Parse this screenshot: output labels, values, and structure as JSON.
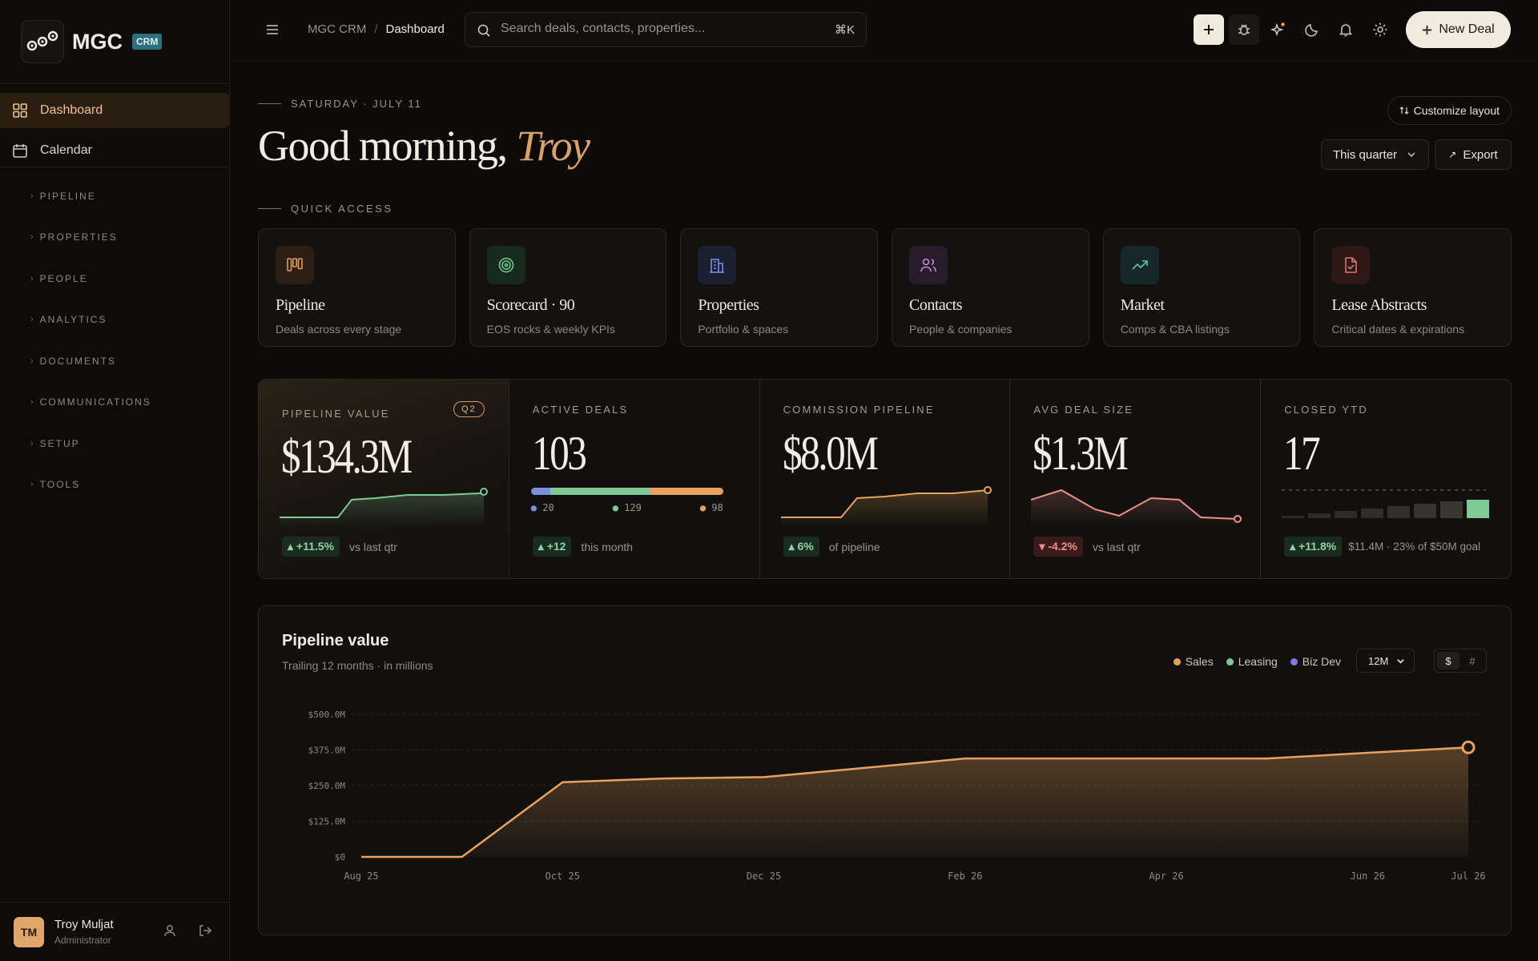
{
  "app": {
    "logo": "MGC",
    "badge": "CRM"
  },
  "nav": {
    "main": [
      {
        "label": "Dashboard",
        "icon": "grid-icon"
      },
      {
        "label": "Calendar",
        "icon": "calendar-icon"
      }
    ],
    "sections": [
      "PIPELINE",
      "PROPERTIES",
      "PEOPLE",
      "ANALYTICS",
      "DOCUMENTS",
      "COMMUNICATIONS",
      "SETUP",
      "TOOLS"
    ]
  },
  "user": {
    "initials": "TM",
    "name": "Troy Muljat",
    "role": "Administrator"
  },
  "topbar": {
    "crumb_root": "MGC CRM",
    "crumb_sep": "/",
    "crumb_current": "Dashboard",
    "search_placeholder": "Search deals, contacts, properties...",
    "search_shortcut": "⌘K",
    "new_deal": "New Deal"
  },
  "header": {
    "date": "SATURDAY · JULY 11",
    "greeting": "Good morning,",
    "name": "Troy",
    "customize": "Customize layout",
    "period": "This quarter",
    "export": "Export"
  },
  "quick_access": {
    "title": "QUICK ACCESS",
    "items": [
      {
        "title": "Pipeline",
        "sub": "Deals across every stage",
        "icon": "kanban-icon",
        "color": "#e29a5a"
      },
      {
        "title": "Scorecard · 90",
        "sub": "EOS rocks & weekly KPIs",
        "icon": "target-icon",
        "color": "#6fc78a"
      },
      {
        "title": "Properties",
        "sub": "Portfolio & spaces",
        "icon": "building-icon",
        "color": "#7c8fe0"
      },
      {
        "title": "Contacts",
        "sub": "People & companies",
        "icon": "users-icon",
        "color": "#c58ad6"
      },
      {
        "title": "Market",
        "sub": "Comps & CBA listings",
        "icon": "trending-up-icon",
        "color": "#5fc6b4"
      },
      {
        "title": "Lease Abstracts",
        "sub": "Critical dates & expirations",
        "icon": "file-check-icon",
        "color": "#e0736a"
      }
    ]
  },
  "kpis": [
    {
      "label": "PIPELINE VALUE",
      "value": "$134.3M",
      "badge": "Q2",
      "delta": "+11.5%",
      "dir": "up",
      "note": "vs last qtr"
    },
    {
      "label": "ACTIVE DEALS",
      "value": "103",
      "delta": "+12",
      "dir": "up",
      "note": "this month",
      "segments": [
        "20",
        "129",
        "98"
      ]
    },
    {
      "label": "COMMISSION PIPELINE",
      "value": "$8.0M",
      "delta": "6%",
      "dir": "up",
      "note": "of pipeline"
    },
    {
      "label": "AVG DEAL SIZE",
      "value": "$1.3M",
      "delta": "-4.2%",
      "dir": "down",
      "note": "vs last qtr"
    },
    {
      "label": "CLOSED YTD",
      "value": "17",
      "delta": "+11.8%",
      "dir": "up",
      "note": "$11.4M · 23% of $50M goal",
      "goal_progress": 0.23
    }
  ],
  "chart_card": {
    "title": "Pipeline value",
    "subtitle": "Trailing 12 months · in millions",
    "range": "12M",
    "toggle": [
      "$",
      "#"
    ],
    "legend": [
      {
        "name": "Sales",
        "color": "#e8a25e"
      },
      {
        "name": "Leasing",
        "color": "#7fc995"
      },
      {
        "name": "Biz Dev",
        "color": "#8177e6"
      }
    ]
  },
  "chart_data": {
    "type": "area",
    "title": "Pipeline value",
    "ylim": [
      0,
      500
    ],
    "yticks": [
      "$500.0M",
      "$375.0M",
      "$250.0M",
      "$125.0M",
      "$0"
    ],
    "xticks": [
      "Aug 25",
      "Oct 25",
      "Dec 25",
      "Feb 26",
      "Apr 26",
      "Jun 26",
      "Jul 26"
    ],
    "x": [
      "Aug 25",
      "Sep 25",
      "Oct 25",
      "Nov 25",
      "Dec 25",
      "Jan 26",
      "Feb 26",
      "Mar 26",
      "Apr 26",
      "May 26",
      "Jun 26",
      "Jul 26"
    ],
    "series": [
      {
        "name": "Sales",
        "values": [
          0,
          0,
          262,
          275,
          280,
          312,
          345,
          345,
          345,
          345,
          365,
          384
        ]
      }
    ]
  },
  "colors": {
    "accent": "#d9a06a",
    "bg": "#0c0b0a",
    "up": "#8fd3a2",
    "down": "#ee8f86"
  }
}
